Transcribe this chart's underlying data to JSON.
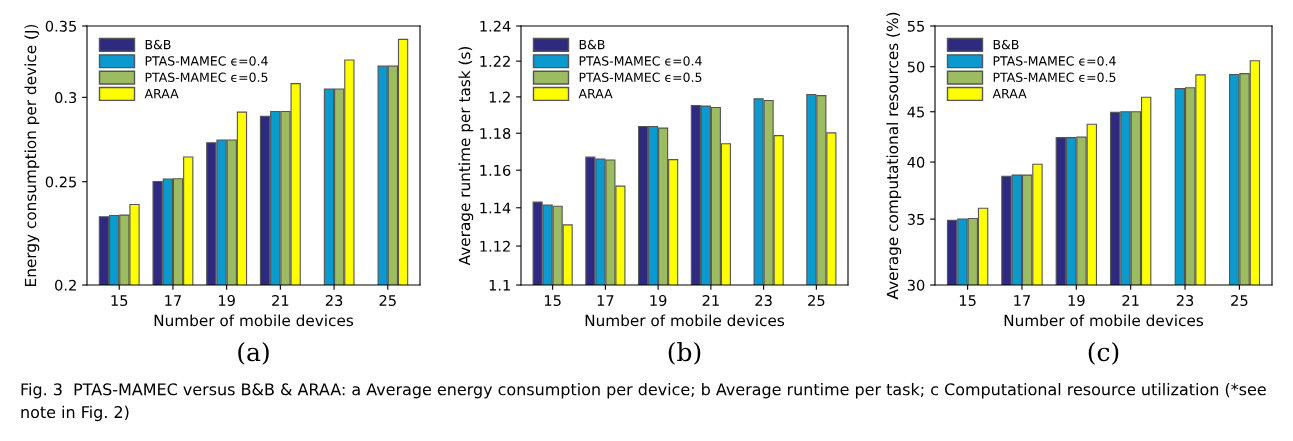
{
  "chart_data": [
    {
      "type": "bar",
      "log": true,
      "legend": "top left",
      "ylabel": "Energy consumption per device (J)",
      "xlabel": "Number of mobile devices",
      "categories": [
        "15",
        "17",
        "19",
        "21",
        "23",
        "25"
      ],
      "ylim": [
        0.2,
        0.35
      ],
      "yticks": [
        0.2,
        0.25,
        0.3,
        0.35
      ],
      "series": [
        {
          "name": "B&B",
          "color": "#2e2a80",
          "values": [
            0.2318,
            0.2501,
            0.272,
            0.288,
            null,
            null
          ]
        },
        {
          "name": "PTAS-MAMEC ϵ=0.4",
          "color": "#0a9acd",
          "values": [
            0.2324,
            0.2514,
            0.2736,
            0.291,
            0.3055,
            0.3209
          ]
        },
        {
          "name": "PTAS-MAMEC ϵ=0.5",
          "color": "#9dbb61",
          "values": [
            0.2326,
            0.2516,
            0.2736,
            0.291,
            0.3055,
            0.3209
          ]
        },
        {
          "name": "ARAA",
          "color": "#ffff00",
          "values": [
            0.238,
            0.2637,
            0.2906,
            0.309,
            0.3252,
            0.34
          ]
        }
      ],
      "annotations": [
        "(a)",
        "Fig. 3  PTAS-MAMEC versus B&B & ARAA: a Average energy consumption per device; b Average runtime per task; c Computational resource utilization (*see note in Fig. 2)"
      ]
    },
    {
      "type": "bar",
      "log": true,
      "legend": "top left",
      "ylabel": "Average runtime per task (s)",
      "xlabel": "Number of mobile devices",
      "categories": [
        "15",
        "17",
        "19",
        "21",
        "23",
        "25"
      ],
      "ylim": [
        1.1,
        1.24
      ],
      "yticks": [
        1.1,
        1.12,
        1.14,
        1.16,
        1.18,
        1.2,
        1.22,
        1.24
      ],
      "series": [
        {
          "name": "B&B",
          "color": "#2e2a80",
          "values": [
            1.143,
            1.167,
            1.1837,
            1.1952,
            null,
            null
          ]
        },
        {
          "name": "PTAS-MAMEC ϵ=0.4",
          "color": "#0a9acd",
          "values": [
            1.1415,
            1.166,
            1.1837,
            1.1949,
            1.1989,
            1.2013
          ]
        },
        {
          "name": "PTAS-MAMEC ϵ=0.5",
          "color": "#9dbb61",
          "values": [
            1.1408,
            1.1655,
            1.1828,
            1.1941,
            1.198,
            1.2007
          ]
        },
        {
          "name": "ARAA",
          "color": "#ffff00",
          "values": [
            1.131,
            1.1515,
            1.1657,
            1.1743,
            1.1787,
            1.1802
          ]
        }
      ],
      "annotations": [
        "(b)"
      ]
    },
    {
      "type": "bar",
      "log": true,
      "legend": "top left",
      "ylabel": "Average computational resources (%)",
      "xlabel": "Number of mobile devices",
      "categories": [
        "15",
        "17",
        "19",
        "21",
        "23",
        "25"
      ],
      "ylim": [
        30,
        55
      ],
      "yticks": [
        30,
        35,
        40,
        45,
        50,
        55
      ],
      "series": [
        {
          "name": "B&B",
          "color": "#2e2a80",
          "values": [
            34.9,
            38.7,
            42.35,
            44.95,
            null,
            null
          ]
        },
        {
          "name": "PTAS-MAMEC ϵ=0.4",
          "color": "#0a9acd",
          "values": [
            35.0,
            38.8,
            42.35,
            45.0,
            47.5,
            49.1
          ]
        },
        {
          "name": "PTAS-MAMEC ϵ=0.5",
          "color": "#9dbb61",
          "values": [
            35.05,
            38.8,
            42.4,
            45.0,
            47.6,
            49.2
          ]
        },
        {
          "name": "ARAA",
          "color": "#ffff00",
          "values": [
            35.9,
            39.8,
            43.7,
            46.55,
            49.05,
            50.7
          ]
        }
      ],
      "annotations": [
        "(c)"
      ]
    }
  ]
}
